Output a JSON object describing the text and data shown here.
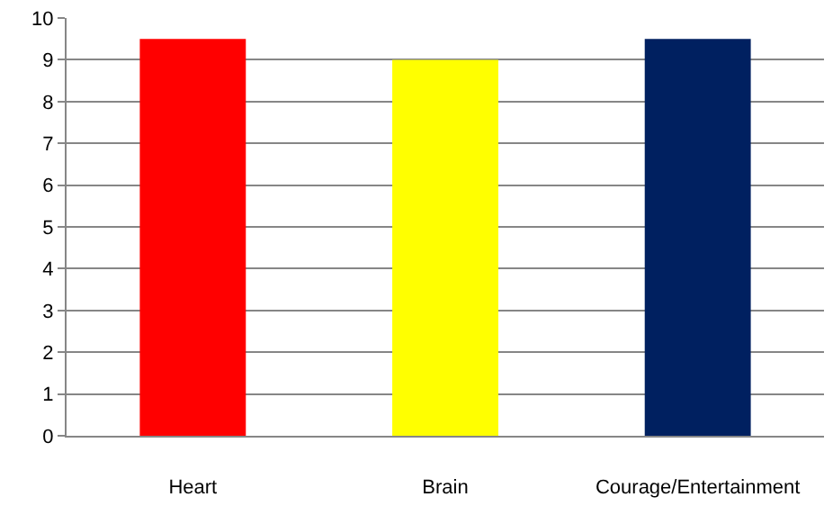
{
  "chart_data": {
    "type": "bar",
    "categories": [
      "Heart",
      "Brain",
      "Courage/Entertainment"
    ],
    "values": [
      9.5,
      9,
      9.5
    ],
    "colors": [
      "#ff0000",
      "#ffff00",
      "#002060"
    ],
    "ylim": [
      0,
      10
    ],
    "yticks": [
      0,
      1,
      2,
      3,
      4,
      5,
      6,
      7,
      8,
      9,
      10
    ],
    "grid": "y",
    "legend": false
  }
}
